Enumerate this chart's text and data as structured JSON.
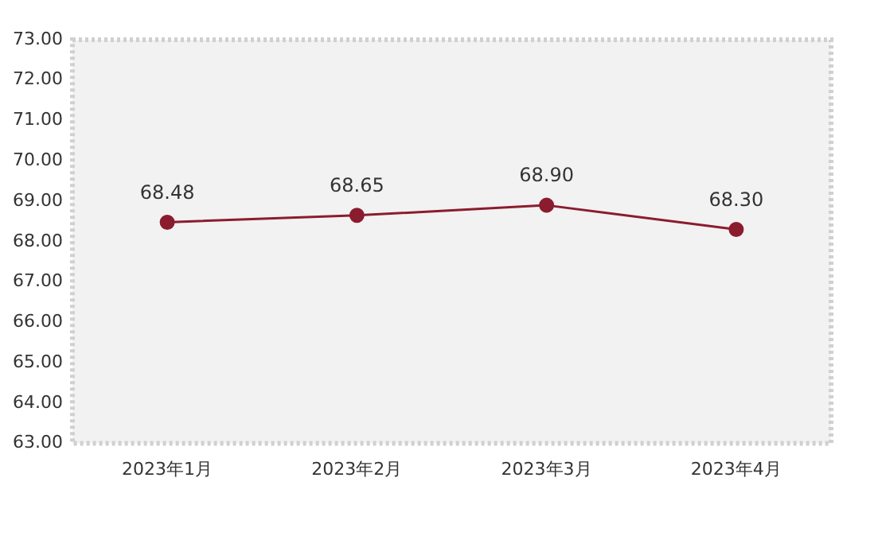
{
  "chart_data": {
    "type": "line",
    "categories": [
      "2023年1月",
      "2023年2月",
      "2023年3月",
      "2023年4月"
    ],
    "series": [
      {
        "color": "#8b1c2e",
        "values": [
          68.48,
          68.65,
          68.9,
          68.3
        ],
        "value_labels": [
          "68.48",
          "68.65",
          "68.90",
          "68.30"
        ]
      }
    ],
    "ylim": [
      63,
      73
    ],
    "yticks": [
      {
        "value": 63,
        "label": "63.00"
      },
      {
        "value": 64,
        "label": "64.00"
      },
      {
        "value": 65,
        "label": "65.00"
      },
      {
        "value": 66,
        "label": "66.00"
      },
      {
        "value": 67,
        "label": "67.00"
      },
      {
        "value": 68,
        "label": "68.00"
      },
      {
        "value": 69,
        "label": "69.00"
      },
      {
        "value": 70,
        "label": "70.00"
      },
      {
        "value": 71,
        "label": "71.00"
      },
      {
        "value": 72,
        "label": "72.00"
      },
      {
        "value": 73,
        "label": "73.00"
      }
    ],
    "grid": false,
    "legend": false,
    "marker": "circle",
    "line_style": "solid"
  }
}
